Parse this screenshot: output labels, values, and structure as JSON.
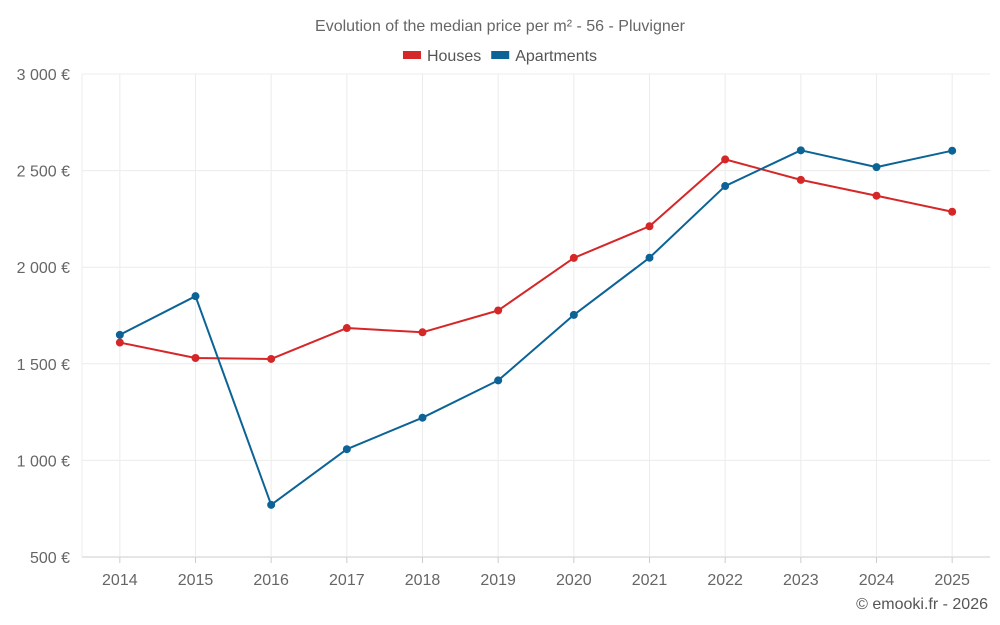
{
  "chart_data": {
    "type": "line",
    "title": "Evolution of the median price per m² - 56 - Pluvigner",
    "categories": [
      "2014",
      "2015",
      "2016",
      "2017",
      "2018",
      "2019",
      "2020",
      "2021",
      "2022",
      "2023",
      "2024",
      "2025"
    ],
    "series": [
      {
        "name": "Houses",
        "color": "#d62728",
        "values": [
          1610,
          1530,
          1525,
          1685,
          1663,
          1776,
          2048,
          2212,
          2558,
          2452,
          2370,
          2287
        ]
      },
      {
        "name": "Apartments",
        "color": "#0b6396",
        "values": [
          1650,
          1850,
          770,
          1058,
          1221,
          1414,
          1753,
          2049,
          2420,
          2605,
          2518,
          2603
        ]
      }
    ],
    "ylim": [
      500,
      3000
    ],
    "yticks": [
      500,
      1000,
      1500,
      2000,
      2500,
      3000
    ],
    "ytick_labels": [
      "500 €",
      "1 000 €",
      "1 500 €",
      "2 000 €",
      "2 500 €",
      "3 000 €"
    ],
    "xlabel": "",
    "ylabel": "",
    "legend_position": "top-center",
    "grid": true
  },
  "credit": "© emooki.fr - 2026"
}
